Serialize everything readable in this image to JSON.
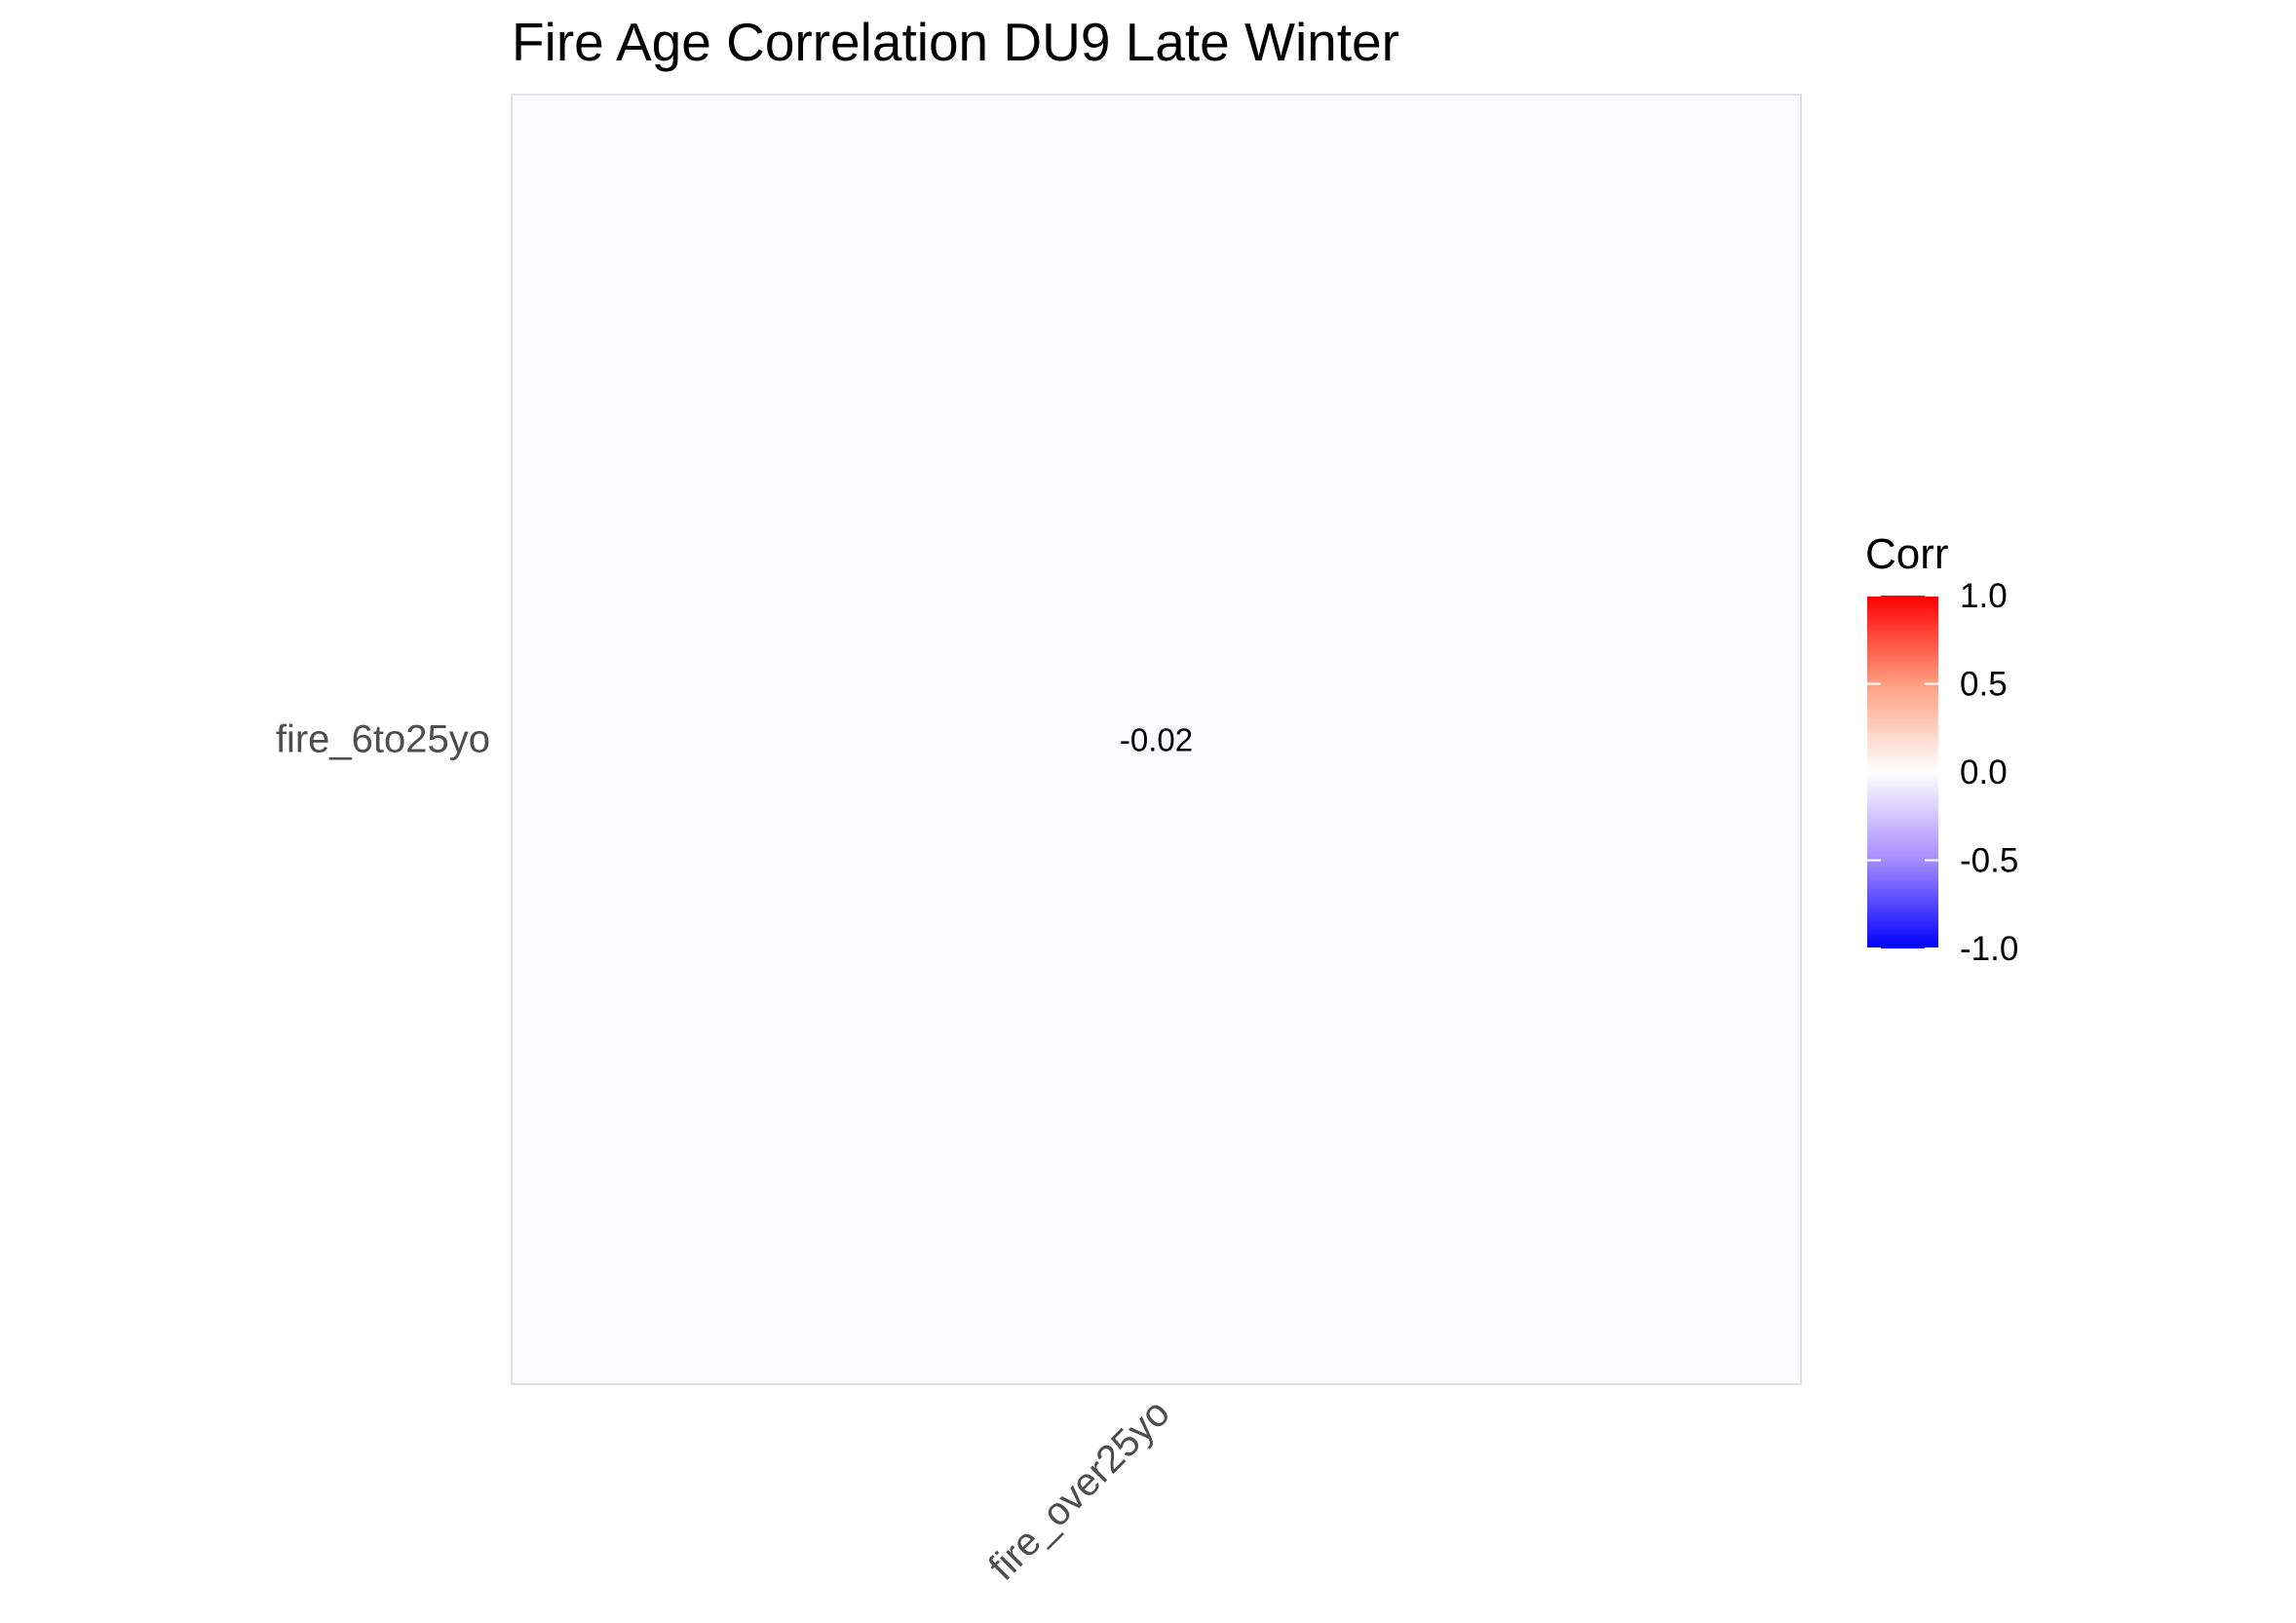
{
  "chart_data": {
    "type": "heatmap",
    "title": "Fire Age Correlation DU9 Late Winter",
    "x_categories": [
      "fire_over25yo"
    ],
    "y_categories": [
      "fire_6to25yo"
    ],
    "cells": [
      {
        "x": "fire_over25yo",
        "y": "fire_6to25yo",
        "value": -0.02,
        "label": "-0.02"
      }
    ],
    "legend": {
      "title": "Corr",
      "range": [
        -1.0,
        1.0
      ],
      "breaks": [
        1.0,
        0.5,
        0.0,
        -0.5,
        -1.0
      ],
      "break_labels": [
        "1.0",
        "0.5",
        "0.0",
        "-0.5",
        "-1.0"
      ],
      "colors": {
        "low": "#0000ff",
        "mid": "#ffffff",
        "high": "#ff0000"
      },
      "placement": "right"
    },
    "grid": false
  }
}
